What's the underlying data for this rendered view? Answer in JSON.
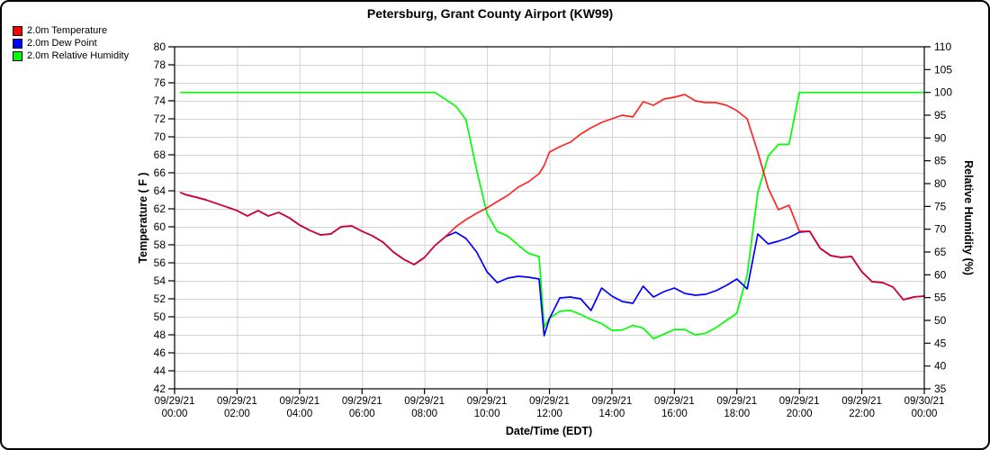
{
  "window_title": "Petersburg, Grant County Airport (KW99)",
  "legend": {
    "items": [
      {
        "label": "2.0m Temperature",
        "color": "#ff0000"
      },
      {
        "label": "2.0m Dew Point",
        "color": "#0000ff"
      },
      {
        "label": "2.0m Relative Humidity",
        "color": "#00ff00"
      }
    ]
  },
  "chart_data": {
    "type": "line",
    "title": "Petersburg, Grant County Airport (KW99)",
    "xlabel": "Date/Time (EDT)",
    "ylabel_left": "Temperature ( F )",
    "ylabel_right": "Relative Humidity (%)",
    "x_unit": "hours since 09/29/21 00:00 EDT",
    "y_left": {
      "min": 42,
      "max": 80,
      "tick_step": 2
    },
    "y_right": {
      "min": 35,
      "max": 110,
      "tick_step": 5
    },
    "grid": true,
    "legend_position": "top-left",
    "x_ticks": [
      {
        "date": "09/29/21",
        "time": "00:00"
      },
      {
        "date": "09/29/21",
        "time": "02:00"
      },
      {
        "date": "09/29/21",
        "time": "04:00"
      },
      {
        "date": "09/29/21",
        "time": "06:00"
      },
      {
        "date": "09/29/21",
        "time": "08:00"
      },
      {
        "date": "09/29/21",
        "time": "10:00"
      },
      {
        "date": "09/29/21",
        "time": "12:00"
      },
      {
        "date": "09/29/21",
        "time": "14:00"
      },
      {
        "date": "09/29/21",
        "time": "16:00"
      },
      {
        "date": "09/29/21",
        "time": "18:00"
      },
      {
        "date": "09/29/21",
        "time": "20:00"
      },
      {
        "date": "09/29/21",
        "time": "22:00"
      },
      {
        "date": "09/30/21",
        "time": "00:00"
      }
    ],
    "x": [
      0.2,
      0.33,
      0.67,
      1,
      1.33,
      1.67,
      2,
      2.33,
      2.67,
      3,
      3.33,
      3.67,
      4,
      4.33,
      4.67,
      5,
      5.33,
      5.67,
      6,
      6.33,
      6.67,
      7,
      7.33,
      7.67,
      8,
      8.33,
      8.67,
      9,
      9.33,
      9.67,
      10,
      10.33,
      10.67,
      11,
      11.33,
      11.67,
      11.83,
      12,
      12.33,
      12.67,
      13,
      13.33,
      13.67,
      14,
      14.33,
      14.67,
      15,
      15.33,
      15.67,
      16,
      16.33,
      16.67,
      17,
      17.33,
      17.67,
      18,
      18.33,
      18.67,
      19,
      19.33,
      19.67,
      20,
      20.33,
      20.67,
      21,
      21.33,
      21.67,
      22,
      22.33,
      22.67,
      23,
      23.33,
      23.67,
      24
    ],
    "series": [
      {
        "name": "2.0m Temperature",
        "axis": "left",
        "color": "#ff0000",
        "values": [
          63.8,
          63.6,
          63.3,
          63.0,
          62.6,
          62.2,
          61.8,
          61.2,
          61.8,
          61.2,
          61.6,
          61.0,
          60.2,
          59.6,
          59.1,
          59.2,
          60.0,
          60.1,
          59.5,
          59.0,
          58.3,
          57.2,
          56.4,
          55.8,
          56.6,
          57.9,
          58.9,
          60.0,
          60.8,
          61.5,
          62.1,
          62.8,
          63.5,
          64.4,
          65.0,
          65.9,
          66.8,
          68.3,
          68.9,
          69.4,
          70.3,
          71.0,
          71.6,
          72.0,
          72.4,
          72.2,
          73.9,
          73.5,
          74.2,
          74.4,
          74.7,
          74.0,
          73.8,
          73.8,
          73.5,
          72.9,
          72.0,
          68.3,
          64.3,
          61.9,
          62.4,
          59.5,
          59.5,
          57.6,
          56.8,
          56.6,
          56.7,
          55.0,
          53.9,
          53.8,
          53.3,
          51.9,
          52.2,
          52.3
        ]
      },
      {
        "name": "2.0m Dew Point",
        "axis": "left",
        "color": "#0000ff",
        "values": [
          63.8,
          63.6,
          63.3,
          63.0,
          62.6,
          62.2,
          61.8,
          61.2,
          61.8,
          61.2,
          61.6,
          61.0,
          60.2,
          59.6,
          59.1,
          59.2,
          60.0,
          60.1,
          59.5,
          59.0,
          58.3,
          57.2,
          56.4,
          55.8,
          56.6,
          57.9,
          58.9,
          59.4,
          58.7,
          57.2,
          55.0,
          53.8,
          54.3,
          54.5,
          54.4,
          54.2,
          47.9,
          49.8,
          52.1,
          52.2,
          52.0,
          50.7,
          53.2,
          52.3,
          51.7,
          51.5,
          53.4,
          52.2,
          52.8,
          53.2,
          52.6,
          52.4,
          52.5,
          52.9,
          53.5,
          54.2,
          53.1,
          59.2,
          58.1,
          58.4,
          58.8,
          59.4,
          59.5,
          57.6,
          56.8,
          56.6,
          56.7,
          55.0,
          53.9,
          53.8,
          53.3,
          51.9,
          52.2,
          52.3
        ]
      },
      {
        "name": "2.0m Relative Humidity",
        "axis": "right",
        "color": "#00ff00",
        "values": [
          100,
          100,
          100,
          100,
          100,
          100,
          100,
          100,
          100,
          100,
          100,
          100,
          100,
          100,
          100,
          100,
          100,
          100,
          100,
          100,
          100,
          100,
          100,
          100,
          100,
          100,
          98.5,
          97,
          94,
          83,
          73.5,
          69.5,
          68.5,
          66.5,
          64.7,
          64,
          48.5,
          50.5,
          52,
          52.2,
          51.3,
          50.2,
          49.3,
          47.8,
          47.9,
          48.9,
          48.3,
          46,
          47,
          48,
          48,
          46.8,
          47.2,
          48.4,
          50,
          51.6,
          60,
          78,
          86,
          88.6,
          88.6,
          100,
          100,
          100,
          100,
          100,
          100,
          100,
          100,
          100,
          100,
          100,
          100,
          100
        ]
      }
    ]
  }
}
